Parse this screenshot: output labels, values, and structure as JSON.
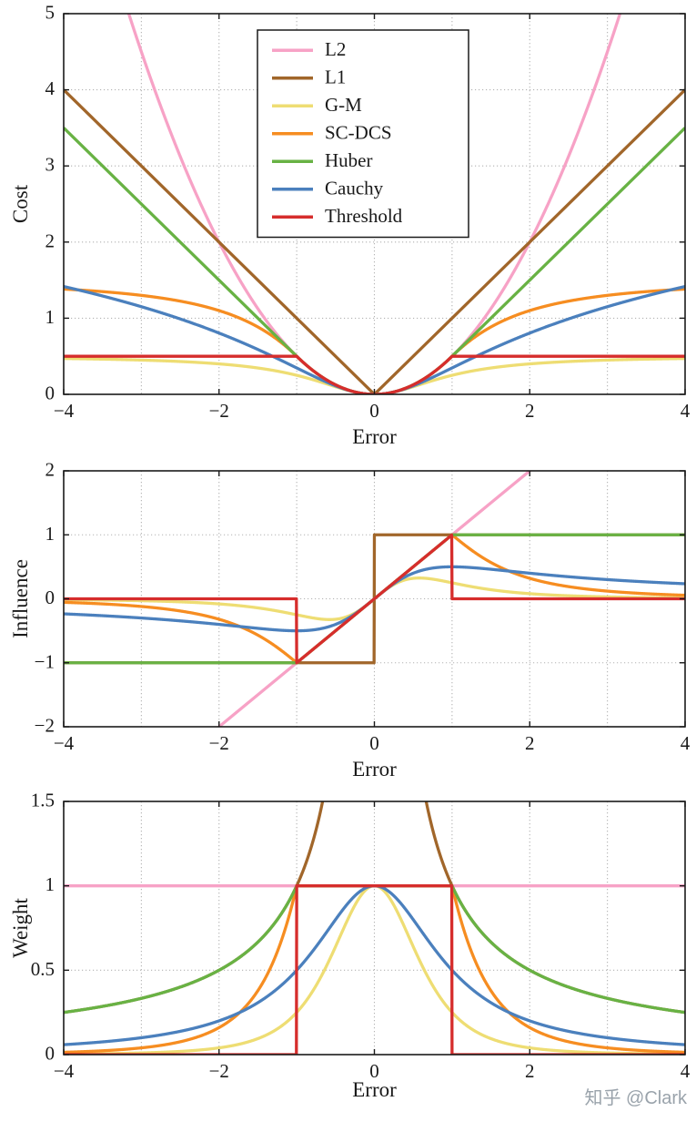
{
  "page": {
    "watermark": "知乎 @Clark",
    "background": "#ffffff"
  },
  "chart_data": [
    {
      "type": "line",
      "title": "",
      "xlabel": "Error",
      "ylabel": "Cost",
      "curve": "cost",
      "xlim": [
        -4,
        4
      ],
      "ylim": [
        0,
        5
      ],
      "xticks": [
        -4,
        -2,
        0,
        2,
        4
      ],
      "yticks": [
        0,
        1,
        2,
        3,
        4,
        5
      ],
      "xgrid_step": 1,
      "grid": "dotted",
      "legend": {
        "show": true,
        "position": "upper-center"
      },
      "series": [
        {
          "name": "L2",
          "color": "#f7a2c6",
          "fn": "l2",
          "formula": "x^2/2"
        },
        {
          "name": "L1",
          "color": "#a1662a",
          "fn": "l1",
          "formula": "|x|"
        },
        {
          "name": "G-M",
          "color": "#eedd73",
          "fn": "gm",
          "formula": "(x^2/2)/(1+x^2)"
        },
        {
          "name": "SC-DCS",
          "color": "#f68d21",
          "fn": "scdcs",
          "formula": "x^2/2 if |x|<=1 else 3/2-2/(1+x^2)"
        },
        {
          "name": "Huber",
          "color": "#68b244",
          "fn": "huber",
          "formula": "x^2/2 if |x|<=1 else |x|-1/2"
        },
        {
          "name": "Cauchy",
          "color": "#4b80bd",
          "fn": "cauchy",
          "formula": "ln(1+x^2)/2"
        },
        {
          "name": "Threshold",
          "color": "#d62d2c",
          "fn": "threshold",
          "formula": "x^2/2 if |x|<=1 else 1/2"
        }
      ]
    },
    {
      "type": "line",
      "title": "",
      "xlabel": "Error",
      "ylabel": "Influence",
      "curve": "influence",
      "xlim": [
        -4,
        4
      ],
      "ylim": [
        -2,
        2
      ],
      "xticks": [
        -4,
        -2,
        0,
        2,
        4
      ],
      "yticks": [
        -2,
        -1,
        0,
        1,
        2
      ],
      "xgrid_step": 1,
      "grid": "dotted",
      "legend": {
        "show": false
      },
      "series": [
        {
          "name": "L2",
          "color": "#f7a2c6",
          "fn": "l2",
          "formula": "x"
        },
        {
          "name": "L1",
          "color": "#a1662a",
          "fn": "l1",
          "formula": "sign(x)"
        },
        {
          "name": "G-M",
          "color": "#eedd73",
          "fn": "gm",
          "formula": "x/(1+x^2)^2"
        },
        {
          "name": "SC-DCS",
          "color": "#f68d21",
          "fn": "scdcs",
          "formula": "x if |x|<=1 else 4x/(1+x^2)^2"
        },
        {
          "name": "Huber",
          "color": "#68b244",
          "fn": "huber",
          "formula": "clamp(x,-1,1)"
        },
        {
          "name": "Cauchy",
          "color": "#4b80bd",
          "fn": "cauchy",
          "formula": "x/(1+x^2)"
        },
        {
          "name": "Threshold",
          "color": "#d62d2c",
          "fn": "threshold",
          "formula": "x if |x|<=1 else 0"
        }
      ]
    },
    {
      "type": "line",
      "title": "",
      "xlabel": "Error",
      "ylabel": "Weight",
      "curve": "weight",
      "xlim": [
        -4,
        4
      ],
      "ylim": [
        0,
        1.5
      ],
      "xticks": [
        -4,
        -2,
        0,
        2,
        4
      ],
      "yticks": [
        0,
        0.5,
        1,
        1.5
      ],
      "xgrid_step": 1,
      "grid": "dotted",
      "legend": {
        "show": false
      },
      "series": [
        {
          "name": "L2",
          "color": "#f7a2c6",
          "fn": "l2",
          "formula": "1"
        },
        {
          "name": "L1",
          "color": "#a1662a",
          "fn": "l1",
          "formula": "1/|x|"
        },
        {
          "name": "G-M",
          "color": "#eedd73",
          "fn": "gm",
          "formula": "1/(1+x^2)^2"
        },
        {
          "name": "SC-DCS",
          "color": "#f68d21",
          "fn": "scdcs",
          "formula": "1 if |x|<=1 else 4/(1+x^2)^2"
        },
        {
          "name": "Huber",
          "color": "#68b244",
          "fn": "huber",
          "formula": "min(1,1/|x|)"
        },
        {
          "name": "Cauchy",
          "color": "#4b80bd",
          "fn": "cauchy",
          "formula": "1/(1+x^2)"
        },
        {
          "name": "Threshold",
          "color": "#d62d2c",
          "fn": "threshold",
          "formula": "1 if |x|<=1 else 0"
        }
      ]
    }
  ]
}
